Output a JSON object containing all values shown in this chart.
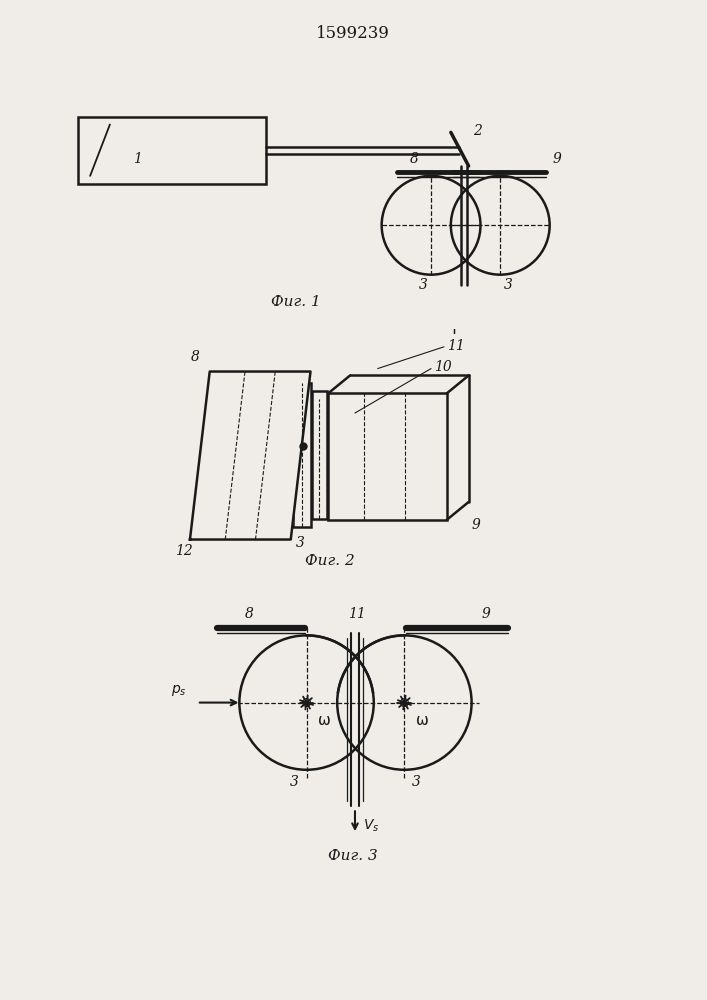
{
  "title": "1599239",
  "title_fontsize": 12,
  "fig1_label": "Фиг. 1",
  "fig2_label": "Фиг. 2",
  "fig3_label": "Фиг. 3",
  "bg_color": "#f0ede8",
  "line_color": "#1a1a1a",
  "label_fontsize": 11,
  "number_fontsize": 10
}
